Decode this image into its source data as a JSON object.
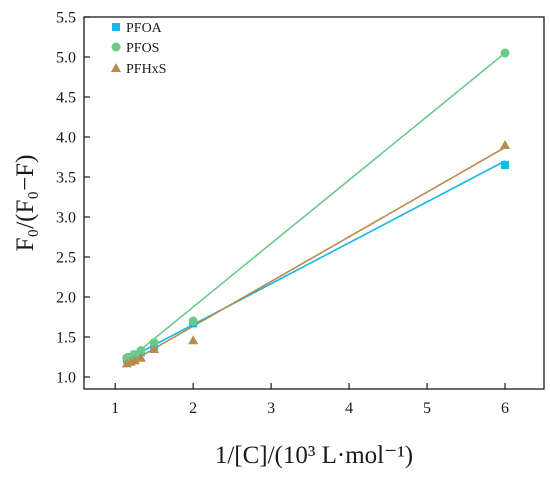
{
  "chart_data": {
    "type": "scatter",
    "xlabel": "1/[C]/(10³ L·mol⁻¹)",
    "ylabel": "F₀/(F₀−F)",
    "xlim": [
      0.6,
      6.5
    ],
    "ylim": [
      0.85,
      5.5
    ],
    "xticks": [
      1,
      2,
      3,
      4,
      5,
      6
    ],
    "yticks": [
      1.0,
      1.5,
      2.0,
      2.5,
      3.0,
      3.5,
      4.0,
      4.5,
      5.0,
      5.5
    ],
    "xtick_labels": [
      "1",
      "2",
      "3",
      "4",
      "5",
      "6"
    ],
    "ytick_labels": [
      "1.0",
      "1.5",
      "2.0",
      "2.5",
      "3.0",
      "3.5",
      "4.0",
      "4.5",
      "5.0",
      "5.5"
    ],
    "legend_position": "top-left",
    "grid": false,
    "series": [
      {
        "name": "PFOA",
        "marker": "square",
        "color": "#1ab8e8",
        "x": [
          1.15,
          1.2,
          1.25,
          1.33,
          1.5,
          2.0,
          6.0
        ],
        "y": [
          1.22,
          1.25,
          1.28,
          1.31,
          1.39,
          1.67,
          3.65
        ],
        "fit": [
          [
            1.15,
            1.22
          ],
          [
            6.0,
            3.7
          ]
        ]
      },
      {
        "name": "PFOS",
        "marker": "circle",
        "color": "#6dc98a",
        "x": [
          1.15,
          1.2,
          1.25,
          1.33,
          1.5,
          2.0,
          6.0
        ],
        "y": [
          1.24,
          1.25,
          1.28,
          1.33,
          1.43,
          1.7,
          5.05
        ],
        "fit": [
          [
            1.15,
            1.2
          ],
          [
            6.0,
            5.05
          ]
        ]
      },
      {
        "name": "PFHxS",
        "marker": "triangle",
        "color": "#b88a4e",
        "x": [
          1.15,
          1.2,
          1.25,
          1.33,
          1.5,
          2.0,
          6.0
        ],
        "y": [
          1.17,
          1.19,
          1.21,
          1.24,
          1.35,
          1.46,
          3.9
        ],
        "fit": [
          [
            1.15,
            1.16
          ],
          [
            6.0,
            3.87
          ]
        ]
      }
    ]
  }
}
